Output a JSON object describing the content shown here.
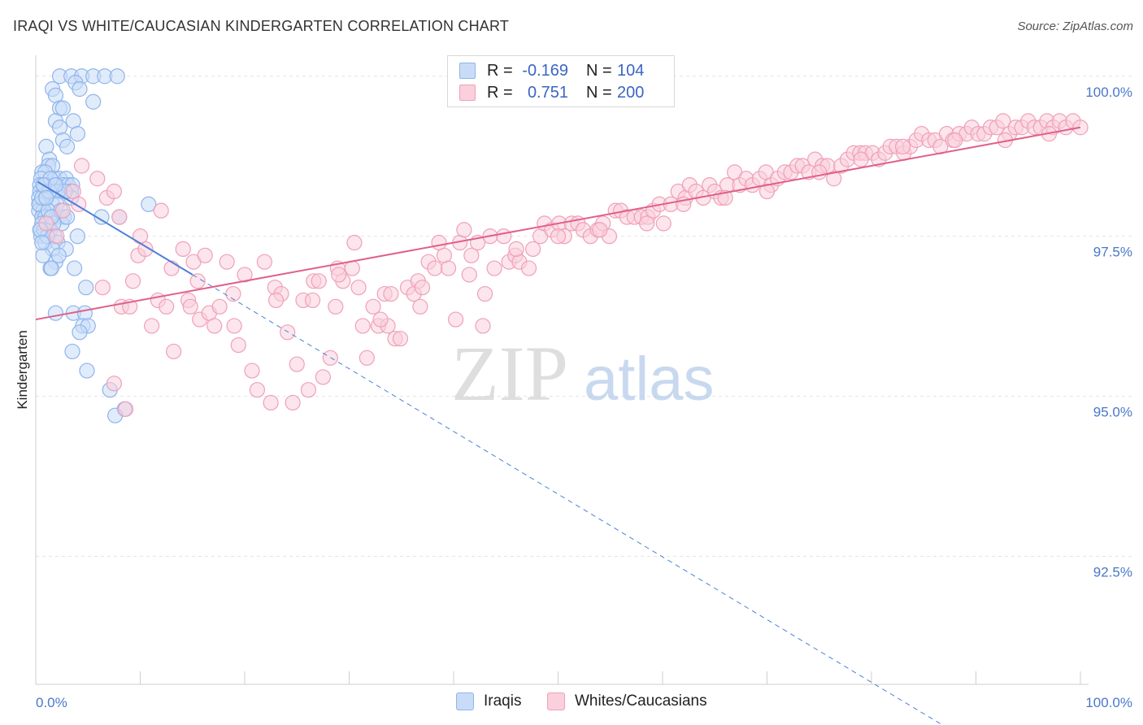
{
  "title": "IRAQI VS WHITE/CAUCASIAN KINDERGARTEN CORRELATION CHART",
  "source": "Source: ZipAtlas.com",
  "watermark": {
    "zip": "ZIP",
    "atlas": "atlas"
  },
  "legend": {
    "rows": [
      {
        "r_label": "R =",
        "r_value": "-0.169",
        "n_label": "N =",
        "n_value": "104",
        "color": "#8fb4ec",
        "fill": "#c9dcf7"
      },
      {
        "r_label": "R =",
        "r_value": "0.751",
        "n_label": "N =",
        "n_value": "200",
        "color": "#f0a0b8",
        "fill": "#f9d0dc"
      }
    ]
  },
  "bottom_legend": [
    {
      "label": "Iraqis",
      "color": "#8fb4ec",
      "fill": "#c9dcf7"
    },
    {
      "label": "Whites/Caucasians",
      "color": "#f0a0b8",
      "fill": "#f9d0dc"
    }
  ],
  "chart_data": {
    "type": "scatter",
    "title": "IRAQI VS WHITE/CAUCASIAN KINDERGARTEN CORRELATION CHART",
    "xlabel": "",
    "ylabel": "Kindergarten",
    "xlim": [
      0,
      100
    ],
    "ylim": [
      90.5,
      100.2
    ],
    "x_tick_labels": [
      "0.0%",
      "100.0%"
    ],
    "y_ticks": [
      100.0,
      97.5,
      95.0,
      92.5
    ],
    "y_tick_labels": [
      "100.0%",
      "97.5%",
      "95.0%",
      "92.5%"
    ],
    "grid": true,
    "series": [
      {
        "name": "Iraqis",
        "color": "#4a80d8",
        "fill": "#c9dcf7",
        "stroke": "#8fb4ec",
        "trend": {
          "x0": 0.2,
          "y0": 98.35,
          "x1": 15.0,
          "y1": 96.9,
          "dash_to_x": 89.0
        },
        "points": [
          [
            2.3,
            100.0
          ],
          [
            3.4,
            100.0
          ],
          [
            4.4,
            100.0
          ],
          [
            5.5,
            100.0
          ],
          [
            6.6,
            100.0
          ],
          [
            7.8,
            100.0
          ],
          [
            3.8,
            99.9
          ],
          [
            1.6,
            99.8
          ],
          [
            4.2,
            99.8
          ],
          [
            1.9,
            99.7
          ],
          [
            5.5,
            99.6
          ],
          [
            2.3,
            99.5
          ],
          [
            2.6,
            99.5
          ],
          [
            1.9,
            99.3
          ],
          [
            3.6,
            99.3
          ],
          [
            2.3,
            99.2
          ],
          [
            4.0,
            99.1
          ],
          [
            2.6,
            99.0
          ],
          [
            1.0,
            98.9
          ],
          [
            3.0,
            98.9
          ],
          [
            1.3,
            98.7
          ],
          [
            1.2,
            98.6
          ],
          [
            1.6,
            98.6
          ],
          [
            0.6,
            98.5
          ],
          [
            0.9,
            98.5
          ],
          [
            0.5,
            98.4
          ],
          [
            1.8,
            98.4
          ],
          [
            2.3,
            98.4
          ],
          [
            2.9,
            98.4
          ],
          [
            0.4,
            98.3
          ],
          [
            1.0,
            98.3
          ],
          [
            1.8,
            98.3
          ],
          [
            2.6,
            98.3
          ],
          [
            3.1,
            98.3
          ],
          [
            3.5,
            98.3
          ],
          [
            0.4,
            98.2
          ],
          [
            1.1,
            98.2
          ],
          [
            1.5,
            98.2
          ],
          [
            1.8,
            98.2
          ],
          [
            2.1,
            98.2
          ],
          [
            3.4,
            98.2
          ],
          [
            0.3,
            98.1
          ],
          [
            0.9,
            98.1
          ],
          [
            3.4,
            98.1
          ],
          [
            0.4,
            98.0
          ],
          [
            1.6,
            98.0
          ],
          [
            10.8,
            98.0
          ],
          [
            0.3,
            97.9
          ],
          [
            0.7,
            97.9
          ],
          [
            0.6,
            97.8
          ],
          [
            0.9,
            97.8
          ],
          [
            2.2,
            97.8
          ],
          [
            2.7,
            97.8
          ],
          [
            6.3,
            97.8
          ],
          [
            8.0,
            97.8
          ],
          [
            0.6,
            97.7
          ],
          [
            1.0,
            97.7
          ],
          [
            2.5,
            97.7
          ],
          [
            0.5,
            97.6
          ],
          [
            1.4,
            97.6
          ],
          [
            0.5,
            97.5
          ],
          [
            1.8,
            97.5
          ],
          [
            4.0,
            97.5
          ],
          [
            0.9,
            97.4
          ],
          [
            2.1,
            97.4
          ],
          [
            1.6,
            97.3
          ],
          [
            2.9,
            97.3
          ],
          [
            0.7,
            97.2
          ],
          [
            1.9,
            97.1
          ],
          [
            1.4,
            97.0
          ],
          [
            1.5,
            97.0
          ],
          [
            3.7,
            97.0
          ],
          [
            4.8,
            96.7
          ],
          [
            1.9,
            96.3
          ],
          [
            3.6,
            96.3
          ],
          [
            4.7,
            96.3
          ],
          [
            4.5,
            96.1
          ],
          [
            5.0,
            96.1
          ],
          [
            4.2,
            96.0
          ],
          [
            3.5,
            95.7
          ],
          [
            4.9,
            95.4
          ],
          [
            7.1,
            95.1
          ],
          [
            8.5,
            94.8
          ],
          [
            7.6,
            94.7
          ],
          [
            0.3,
            98.0
          ],
          [
            0.6,
            98.1
          ],
          [
            0.8,
            98.3
          ],
          [
            1.4,
            98.4
          ],
          [
            2.0,
            98.0
          ],
          [
            1.2,
            97.9
          ],
          [
            0.8,
            97.6
          ],
          [
            1.1,
            97.5
          ],
          [
            2.4,
            97.9
          ],
          [
            3.0,
            97.8
          ],
          [
            1.7,
            97.7
          ],
          [
            0.4,
            97.6
          ],
          [
            1.3,
            98.2
          ],
          [
            2.8,
            98.2
          ],
          [
            0.7,
            98.3
          ],
          [
            1.9,
            98.3
          ],
          [
            1.0,
            98.1
          ],
          [
            1.5,
            97.8
          ],
          [
            0.6,
            97.4
          ],
          [
            2.2,
            97.2
          ]
        ]
      },
      {
        "name": "Whites/Caucasians",
        "color": "#e0608a",
        "fill": "#f9d0dc",
        "stroke": "#f0a0b8",
        "trend": {
          "x0": 0.0,
          "y0": 96.2,
          "x1": 100.0,
          "y1": 99.2
        },
        "points": [
          [
            1.0,
            97.7
          ],
          [
            2.6,
            97.9
          ],
          [
            3.6,
            98.2
          ],
          [
            4.1,
            98.0
          ],
          [
            4.4,
            98.6
          ],
          [
            5.9,
            98.4
          ],
          [
            6.8,
            98.1
          ],
          [
            7.5,
            98.2
          ],
          [
            8.0,
            97.8
          ],
          [
            12.0,
            97.9
          ],
          [
            2.0,
            97.5
          ],
          [
            6.4,
            96.7
          ],
          [
            8.2,
            96.4
          ],
          [
            9.3,
            96.8
          ],
          [
            9.8,
            97.2
          ],
          [
            10.5,
            97.3
          ],
          [
            11.1,
            96.1
          ],
          [
            11.7,
            96.5
          ],
          [
            12.5,
            96.4
          ],
          [
            13.2,
            95.7
          ],
          [
            14.1,
            97.3
          ],
          [
            14.6,
            96.5
          ],
          [
            15.1,
            97.1
          ],
          [
            15.7,
            96.2
          ],
          [
            16.2,
            97.2
          ],
          [
            16.6,
            96.3
          ],
          [
            17.1,
            96.1
          ],
          [
            17.6,
            96.4
          ],
          [
            18.3,
            97.1
          ],
          [
            19.0,
            96.1
          ],
          [
            19.4,
            95.8
          ],
          [
            20.7,
            95.4
          ],
          [
            21.2,
            95.1
          ],
          [
            21.9,
            97.1
          ],
          [
            22.5,
            94.9
          ],
          [
            22.9,
            96.7
          ],
          [
            23.5,
            96.6
          ],
          [
            24.1,
            96.0
          ],
          [
            24.6,
            94.9
          ],
          [
            25.0,
            95.5
          ],
          [
            25.6,
            96.5
          ],
          [
            26.1,
            95.1
          ],
          [
            26.6,
            96.8
          ],
          [
            27.1,
            96.8
          ],
          [
            27.5,
            95.3
          ],
          [
            28.2,
            95.6
          ],
          [
            28.7,
            96.4
          ],
          [
            28.9,
            97.0
          ],
          [
            29.4,
            96.8
          ],
          [
            30.3,
            97.0
          ],
          [
            30.5,
            97.4
          ],
          [
            30.9,
            96.7
          ],
          [
            31.3,
            96.1
          ],
          [
            31.7,
            95.6
          ],
          [
            32.3,
            96.4
          ],
          [
            32.8,
            96.1
          ],
          [
            33.4,
            96.6
          ],
          [
            33.7,
            96.1
          ],
          [
            34.0,
            96.6
          ],
          [
            34.4,
            95.9
          ],
          [
            34.9,
            95.9
          ],
          [
            35.6,
            96.7
          ],
          [
            36.2,
            96.6
          ],
          [
            36.6,
            96.8
          ],
          [
            37.0,
            96.7
          ],
          [
            37.6,
            97.1
          ],
          [
            38.2,
            97.0
          ],
          [
            38.6,
            97.4
          ],
          [
            39.1,
            97.2
          ],
          [
            39.5,
            97.0
          ],
          [
            40.2,
            96.2
          ],
          [
            40.6,
            97.4
          ],
          [
            41.0,
            97.6
          ],
          [
            41.7,
            97.2
          ],
          [
            42.3,
            97.4
          ],
          [
            42.8,
            96.1
          ],
          [
            43.0,
            96.6
          ],
          [
            43.5,
            97.5
          ],
          [
            43.9,
            97.0
          ],
          [
            44.8,
            97.5
          ],
          [
            45.3,
            97.1
          ],
          [
            45.9,
            97.2
          ],
          [
            46.3,
            97.1
          ],
          [
            47.2,
            97.0
          ],
          [
            47.6,
            97.3
          ],
          [
            48.3,
            97.5
          ],
          [
            48.7,
            97.7
          ],
          [
            49.4,
            97.6
          ],
          [
            50.1,
            97.7
          ],
          [
            50.6,
            97.5
          ],
          [
            51.3,
            97.7
          ],
          [
            51.9,
            97.7
          ],
          [
            52.4,
            97.6
          ],
          [
            53.1,
            97.5
          ],
          [
            53.8,
            97.6
          ],
          [
            54.3,
            97.7
          ],
          [
            54.9,
            97.5
          ],
          [
            55.5,
            97.9
          ],
          [
            56.0,
            97.9
          ],
          [
            56.6,
            97.8
          ],
          [
            57.3,
            97.8
          ],
          [
            58.0,
            97.8
          ],
          [
            58.6,
            97.8
          ],
          [
            59.1,
            97.9
          ],
          [
            59.7,
            98.0
          ],
          [
            60.1,
            97.7
          ],
          [
            60.8,
            98.0
          ],
          [
            61.5,
            98.2
          ],
          [
            62.2,
            98.1
          ],
          [
            62.6,
            98.3
          ],
          [
            63.2,
            98.2
          ],
          [
            63.9,
            98.1
          ],
          [
            64.5,
            98.3
          ],
          [
            65.0,
            98.2
          ],
          [
            65.6,
            98.1
          ],
          [
            66.2,
            98.3
          ],
          [
            66.9,
            98.5
          ],
          [
            67.4,
            98.3
          ],
          [
            68.0,
            98.4
          ],
          [
            68.6,
            98.3
          ],
          [
            69.3,
            98.4
          ],
          [
            69.9,
            98.5
          ],
          [
            70.4,
            98.3
          ],
          [
            71.0,
            98.4
          ],
          [
            71.7,
            98.5
          ],
          [
            72.3,
            98.5
          ],
          [
            72.9,
            98.6
          ],
          [
            73.4,
            98.6
          ],
          [
            74.0,
            98.5
          ],
          [
            74.6,
            98.7
          ],
          [
            75.3,
            98.6
          ],
          [
            75.8,
            98.6
          ],
          [
            76.4,
            98.4
          ],
          [
            77.1,
            98.6
          ],
          [
            77.7,
            98.7
          ],
          [
            78.3,
            98.8
          ],
          [
            78.9,
            98.8
          ],
          [
            79.4,
            98.8
          ],
          [
            80.1,
            98.8
          ],
          [
            80.7,
            98.7
          ],
          [
            81.3,
            98.8
          ],
          [
            81.8,
            98.9
          ],
          [
            82.4,
            98.9
          ],
          [
            83.1,
            98.8
          ],
          [
            83.7,
            98.9
          ],
          [
            84.3,
            99.0
          ],
          [
            84.8,
            99.1
          ],
          [
            85.5,
            99.0
          ],
          [
            86.1,
            99.0
          ],
          [
            86.6,
            98.9
          ],
          [
            87.2,
            99.1
          ],
          [
            87.8,
            99.0
          ],
          [
            88.4,
            99.1
          ],
          [
            89.1,
            99.1
          ],
          [
            89.6,
            99.2
          ],
          [
            90.2,
            99.1
          ],
          [
            90.8,
            99.1
          ],
          [
            91.4,
            99.2
          ],
          [
            92.0,
            99.2
          ],
          [
            92.6,
            99.3
          ],
          [
            93.2,
            99.1
          ],
          [
            93.8,
            99.2
          ],
          [
            94.4,
            99.2
          ],
          [
            95.0,
            99.3
          ],
          [
            95.6,
            99.2
          ],
          [
            96.2,
            99.2
          ],
          [
            96.8,
            99.3
          ],
          [
            97.4,
            99.2
          ],
          [
            98.0,
            99.3
          ],
          [
            98.6,
            99.2
          ],
          [
            99.3,
            99.3
          ],
          [
            100.0,
            99.2
          ],
          [
            97.0,
            99.1
          ],
          [
            92.8,
            99.0
          ],
          [
            88.0,
            99.0
          ],
          [
            83.0,
            98.9
          ],
          [
            79.0,
            98.7
          ],
          [
            75.0,
            98.5
          ],
          [
            70.0,
            98.2
          ],
          [
            66.0,
            98.1
          ],
          [
            62.0,
            98.0
          ],
          [
            58.5,
            97.7
          ],
          [
            54.0,
            97.6
          ],
          [
            50.0,
            97.5
          ],
          [
            46.0,
            97.3
          ],
          [
            41.5,
            96.9
          ],
          [
            36.8,
            96.4
          ],
          [
            33.0,
            96.2
          ],
          [
            29.0,
            96.9
          ],
          [
            26.5,
            96.5
          ],
          [
            23.0,
            96.5
          ],
          [
            18.9,
            96.6
          ],
          [
            14.8,
            96.4
          ],
          [
            10.0,
            97.5
          ],
          [
            9.0,
            96.4
          ],
          [
            7.5,
            95.2
          ],
          [
            8.6,
            94.8
          ],
          [
            13.0,
            97.0
          ],
          [
            15.5,
            96.8
          ],
          [
            20.0,
            96.9
          ]
        ]
      }
    ]
  }
}
